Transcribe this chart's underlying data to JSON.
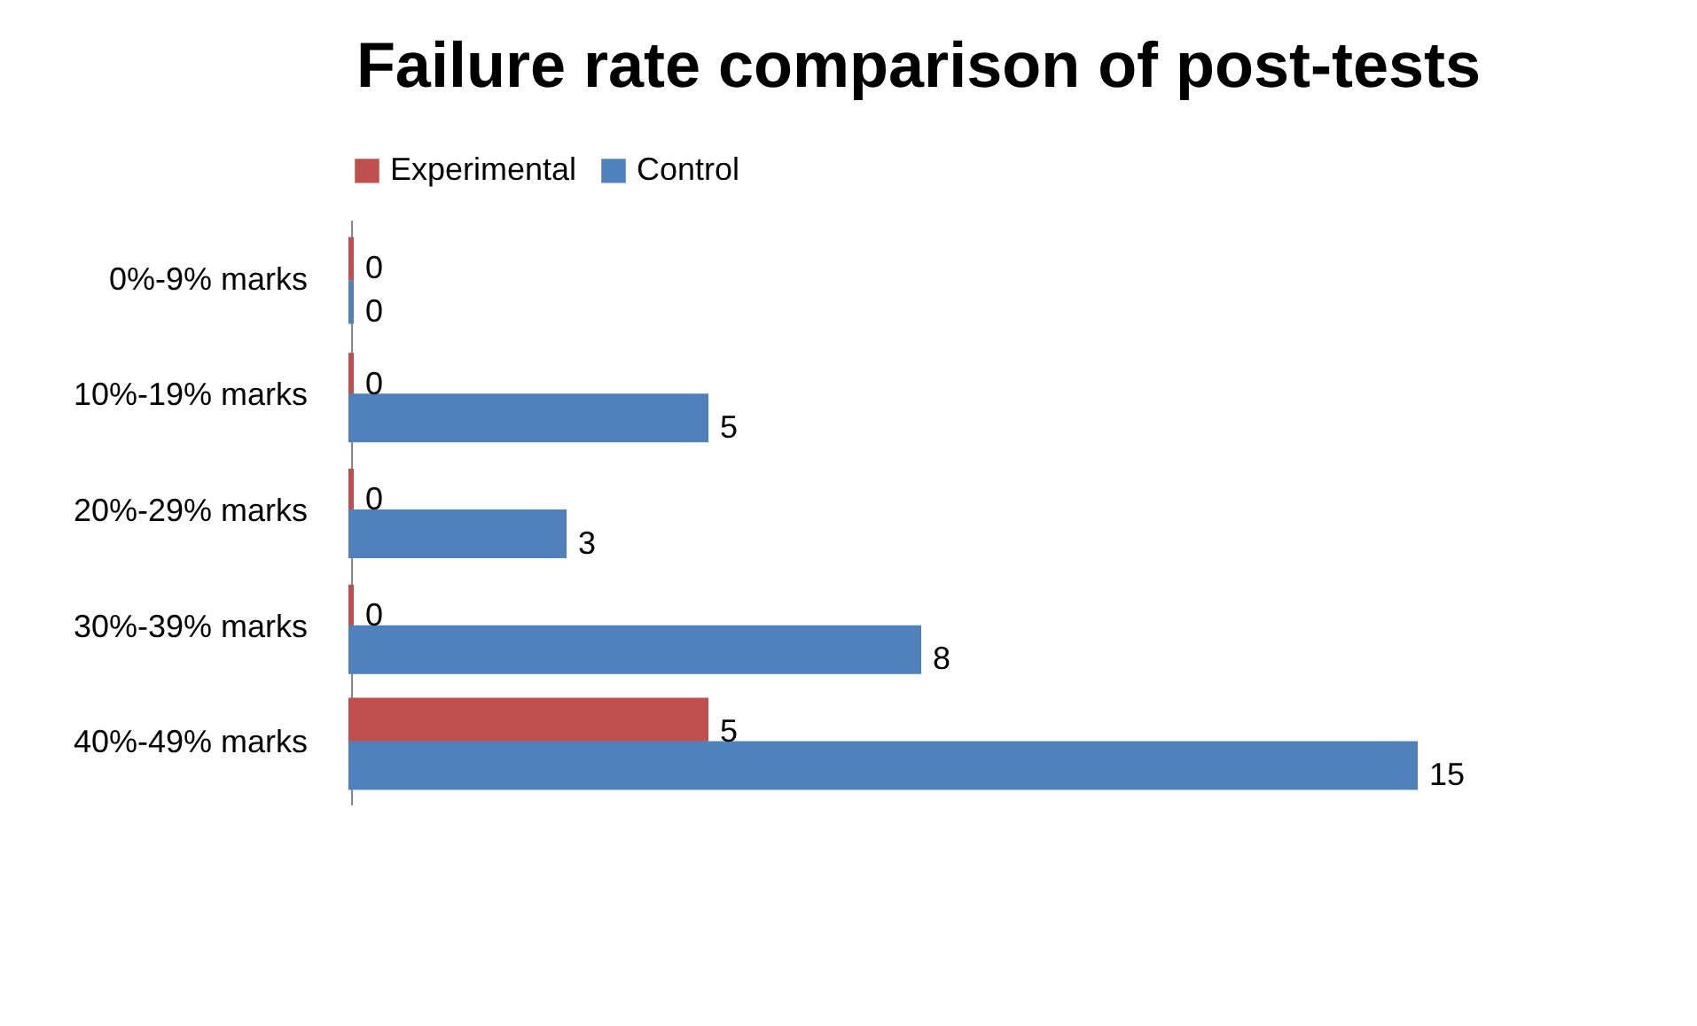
{
  "chart_data": {
    "type": "bar",
    "orientation": "horizontal",
    "title": "Failure rate comparison of post-tests",
    "categories": [
      "0%-9% marks",
      "10%-19% marks",
      "20%-29% marks",
      "30%-39% marks",
      "40%-49% marks"
    ],
    "series": [
      {
        "name": "Experimental",
        "color": "#c0504d",
        "values": [
          0,
          0,
          0,
          0,
          5
        ]
      },
      {
        "name": "Control",
        "color": "#4f81bd",
        "values": [
          0,
          5,
          3,
          8,
          15
        ]
      }
    ],
    "data_labels": true,
    "legend": "top"
  }
}
